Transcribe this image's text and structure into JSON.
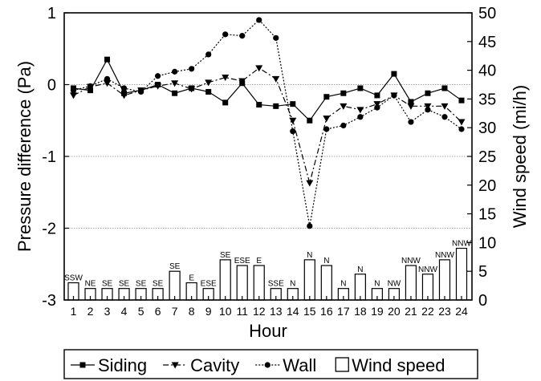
{
  "chart_data": {
    "type": "line",
    "xlabel": "Hour",
    "ylabel": "Pressure difference (Pa)",
    "y2label": "Wind speed (mi/h)",
    "x": [
      1,
      2,
      3,
      4,
      5,
      6,
      7,
      8,
      9,
      10,
      11,
      12,
      13,
      14,
      15,
      16,
      17,
      18,
      19,
      20,
      21,
      22,
      23,
      24
    ],
    "ylim": [
      -3,
      1
    ],
    "yticks": [
      -3,
      -2,
      -1,
      0,
      1
    ],
    "y2lim": [
      0,
      50
    ],
    "y2ticks": [
      0,
      5,
      10,
      15,
      20,
      25,
      30,
      35,
      40,
      45,
      50
    ],
    "grid": {
      "horizontal_lines_at": [
        0,
        -1,
        -2
      ]
    },
    "legend_position": "bottom",
    "series": [
      {
        "name": "Siding",
        "marker": "square",
        "line": "solid",
        "axis": "left",
        "values": [
          -0.05,
          -0.08,
          0.35,
          -0.12,
          -0.08,
          0.0,
          -0.12,
          -0.05,
          -0.1,
          -0.25,
          0.02,
          -0.28,
          -0.3,
          -0.27,
          -0.5,
          -0.17,
          -0.12,
          -0.05,
          -0.15,
          0.15,
          -0.24,
          -0.12,
          -0.05,
          -0.22
        ]
      },
      {
        "name": "Cavity",
        "marker": "triangle-down",
        "line": "dash-dot",
        "axis": "left",
        "values": [
          -0.15,
          -0.03,
          0.02,
          -0.15,
          -0.08,
          -0.02,
          0.02,
          -0.06,
          0.03,
          0.1,
          0.05,
          0.23,
          0.08,
          -0.5,
          -1.37,
          -0.47,
          -0.3,
          -0.35,
          -0.27,
          -0.15,
          -0.3,
          -0.3,
          -0.3,
          -0.52
        ]
      },
      {
        "name": "Wall",
        "marker": "circle",
        "line": "dotted",
        "axis": "left",
        "values": [
          -0.08,
          -0.02,
          0.08,
          -0.05,
          -0.1,
          0.12,
          0.18,
          0.22,
          0.42,
          0.7,
          0.68,
          0.9,
          0.65,
          -0.65,
          -1.97,
          -0.62,
          -0.57,
          -0.45,
          -0.32,
          -0.15,
          -0.52,
          -0.35,
          -0.45,
          -0.62
        ]
      },
      {
        "name": "Wind speed",
        "type": "bar",
        "axis": "right",
        "values": [
          3,
          2,
          2,
          2,
          2,
          2,
          5,
          3,
          2,
          7,
          6,
          6,
          2,
          2,
          7,
          6,
          2,
          4.5,
          2,
          2,
          6,
          4.5,
          7,
          9
        ],
        "labels": [
          "SSW",
          "NE",
          "SE",
          "SE",
          "SE",
          "SE",
          "SE",
          "E",
          "ESE",
          "SE",
          "ESE",
          "E",
          "SSE",
          "N",
          "N",
          "N",
          "N",
          "N",
          "N",
          "NW",
          "NNW",
          "NNW",
          "NNW",
          "NNW"
        ]
      }
    ]
  }
}
